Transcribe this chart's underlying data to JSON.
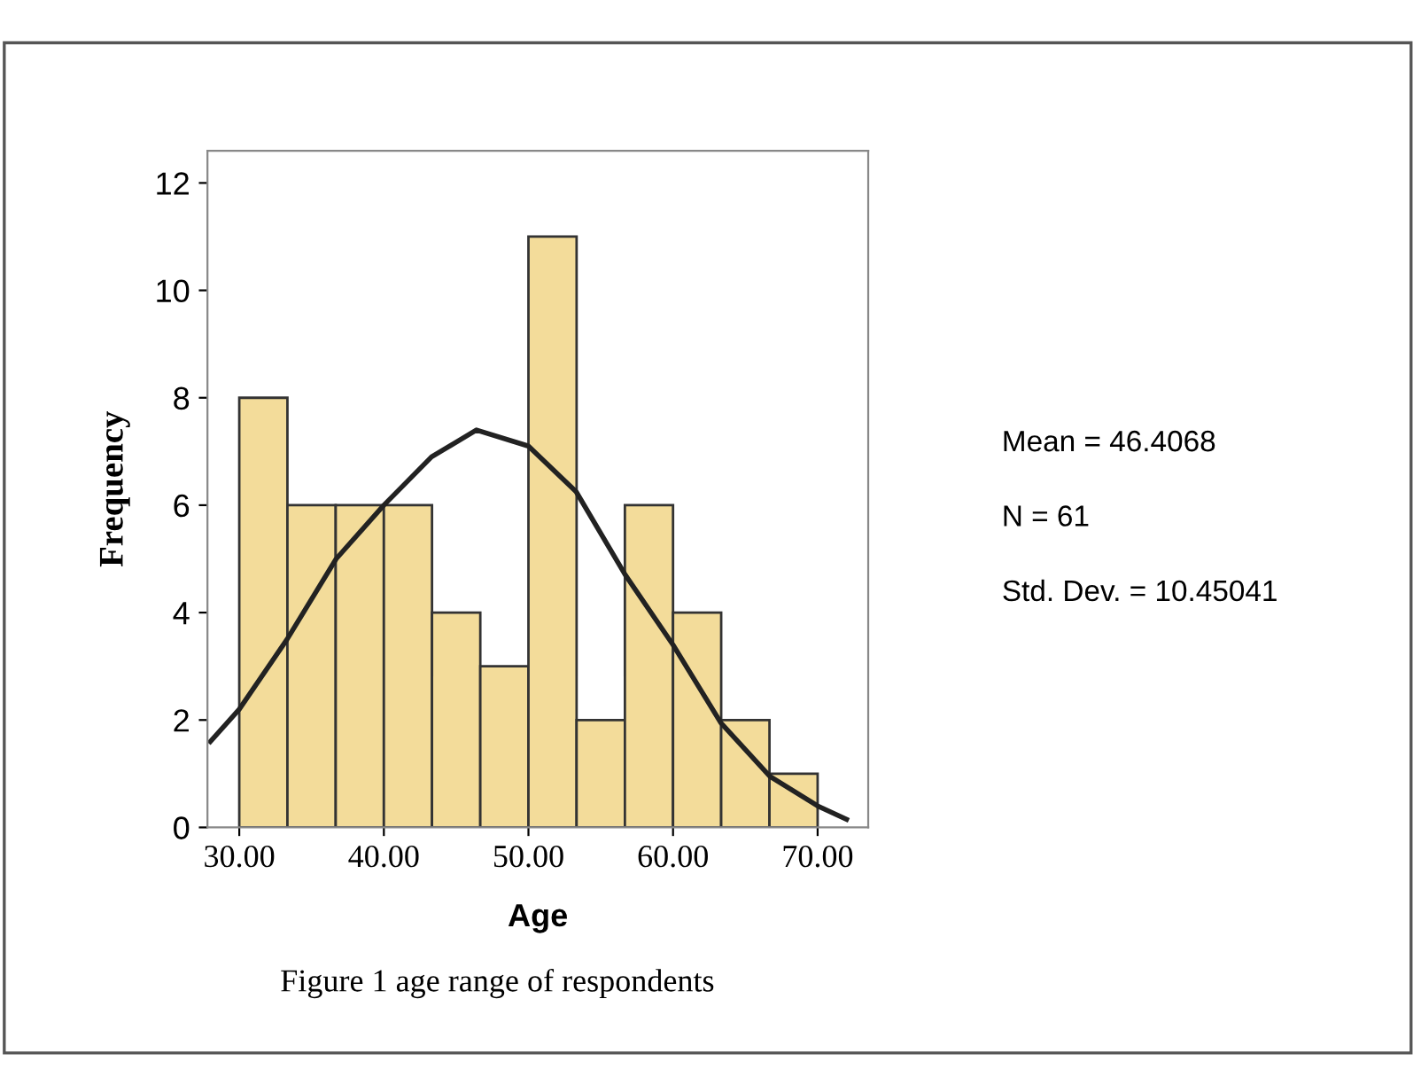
{
  "chart_data": {
    "type": "histogram",
    "xlabel": "Age",
    "ylabel": "Frequency",
    "bins": [
      30,
      33.33,
      36.67,
      40,
      43.33,
      46.67,
      50,
      53.33,
      56.67,
      60,
      63.33,
      66.67,
      70
    ],
    "values": [
      8,
      6,
      6,
      6,
      4,
      3,
      11,
      2,
      6,
      4,
      2,
      1
    ],
    "color": "#f3dc9a",
    "series": [
      {
        "type": "line",
        "color": "#222222",
        "x": [
          28,
          30,
          33.3,
          36.7,
          40,
          43.3,
          46.4,
          50,
          53.3,
          56.7,
          60,
          63.3,
          66.7,
          70,
          72
        ],
        "values": [
          1.6,
          2.2,
          3.5,
          5.0,
          6.0,
          6.9,
          7.4,
          7.1,
          6.25,
          4.7,
          3.4,
          1.95,
          0.95,
          0.4,
          0.15
        ]
      }
    ],
    "xlim": [
      27.8,
      73.5
    ],
    "ylim": [
      0,
      12.6
    ],
    "xticks": [
      {
        "value": 30,
        "label": "30.00"
      },
      {
        "value": 40,
        "label": "40.00"
      },
      {
        "value": 50,
        "label": "50.00"
      },
      {
        "value": 60,
        "label": "60.00"
      },
      {
        "value": 70,
        "label": "70.00"
      }
    ],
    "yticks": [
      0,
      2,
      4,
      6,
      8,
      10,
      12
    ],
    "annotations": [
      "Mean = 46.4068",
      "N = 61",
      "Std. Dev. = 10.45041",
      "Figure 1 age range of respondents"
    ],
    "grid": false,
    "legend": false
  }
}
